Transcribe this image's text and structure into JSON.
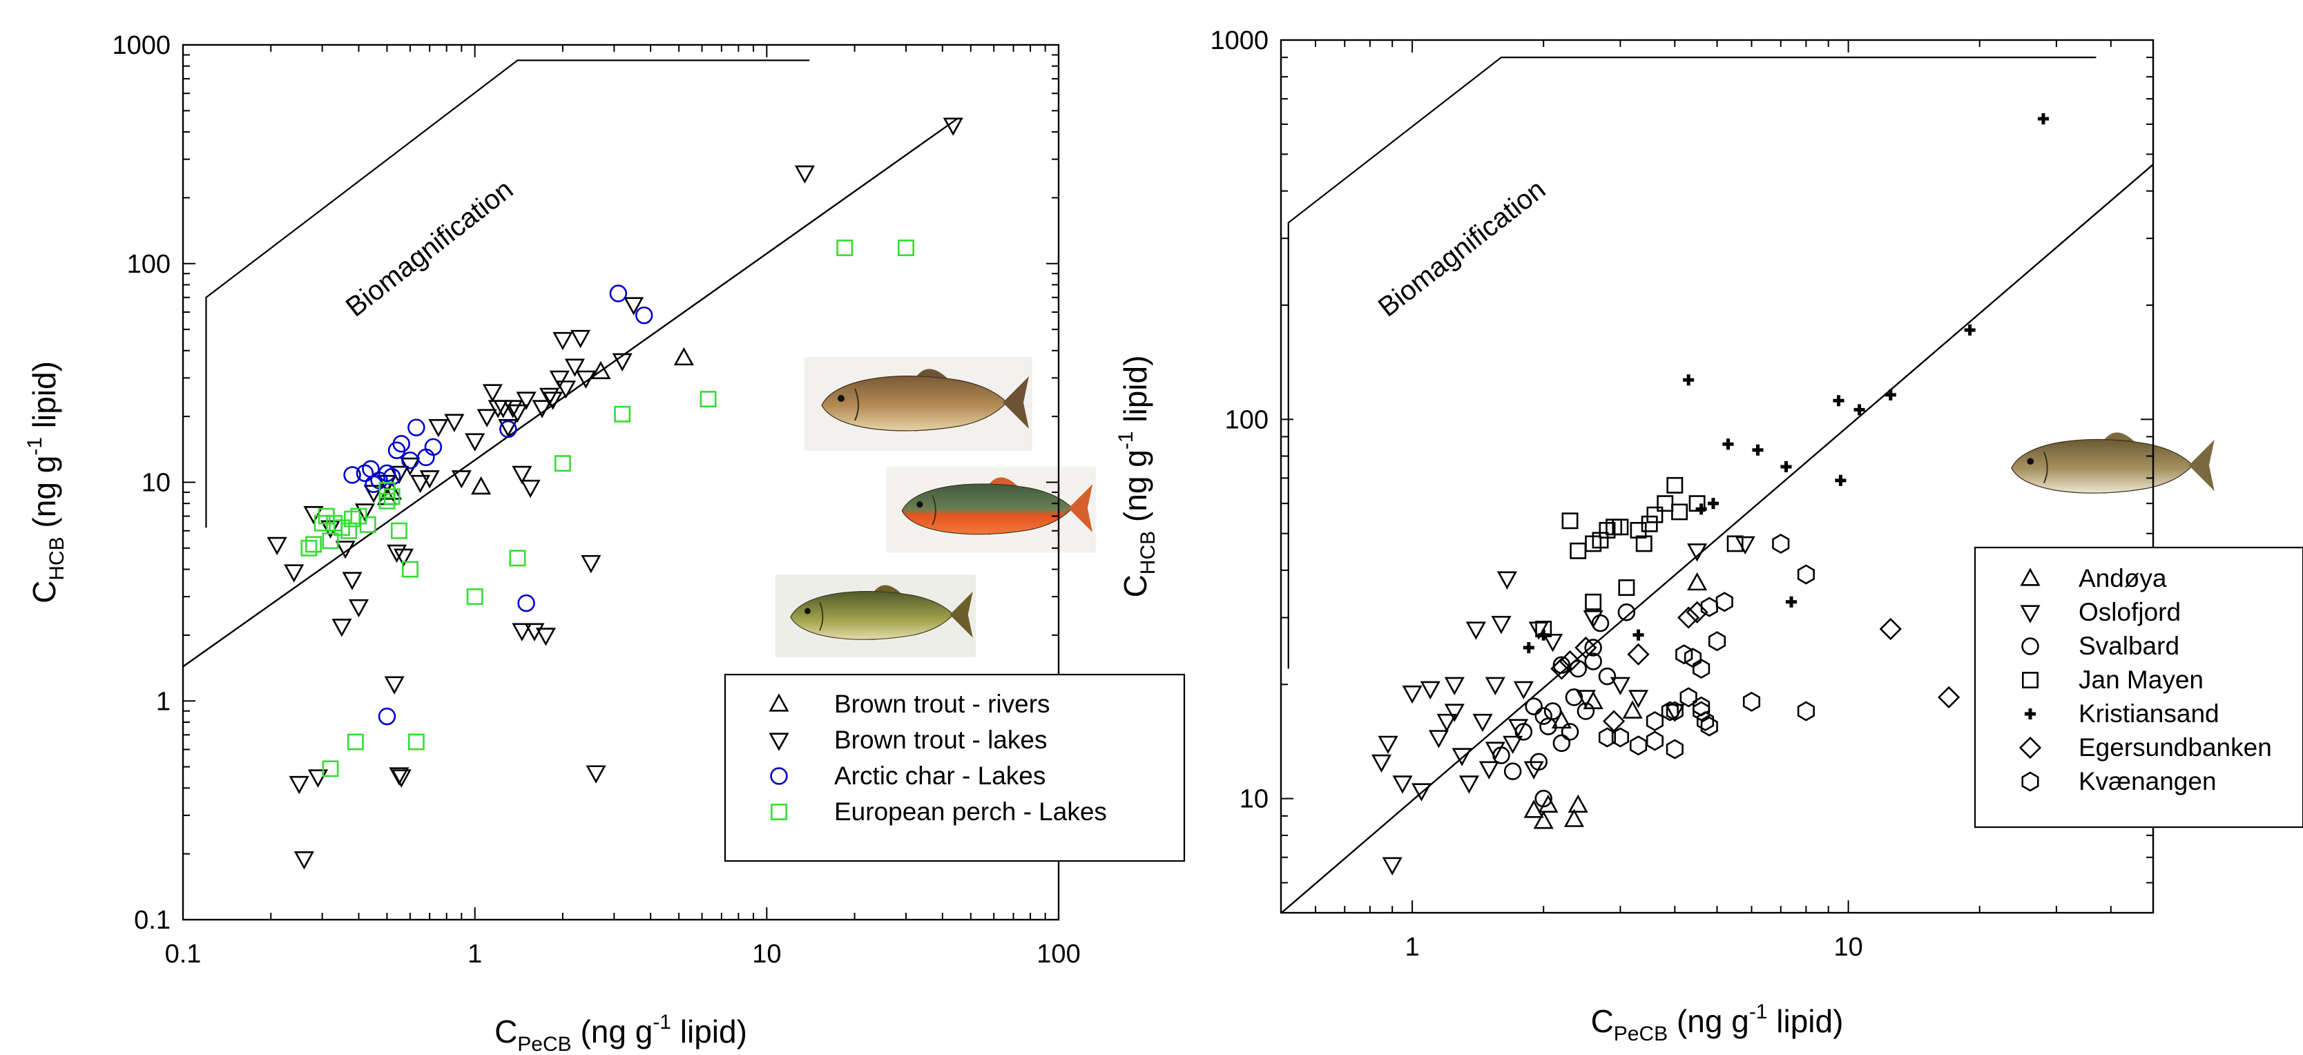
{
  "chart_data": [
    {
      "type": "scatter",
      "xscale": "log",
      "yscale": "log",
      "xlim": [
        0.1,
        100
      ],
      "ylim": [
        0.1,
        1000
      ],
      "x_ticks": [
        "0.1",
        "1",
        "10",
        "100"
      ],
      "y_ticks": [
        "0.1",
        "1",
        "10",
        "100",
        "1000"
      ],
      "xlabel": {
        "main": "C",
        "sub": "PeCB",
        "rest": " (ng g",
        "sup": "-1",
        "end": " lipid)"
      },
      "ylabel": {
        "main": "C",
        "sub": "HCB",
        "rest": " (ng g",
        "sup": "-1",
        "end": " lipid)"
      },
      "annotation": "Biomagnification",
      "legend_position": "bottom-right",
      "series": [
        {
          "name": "Brown trout - rivers",
          "marker": "triangle-up",
          "color": "#000000",
          "points": [
            [
              0.5,
              8.5
            ],
            [
              0.52,
              9
            ],
            [
              1.05,
              9.5
            ],
            [
              2.7,
              32
            ],
            [
              5.2,
              37
            ]
          ]
        },
        {
          "name": "Brown trout - lakes",
          "marker": "triangle-down",
          "color": "#000000",
          "points": [
            [
              0.21,
              5.2
            ],
            [
              0.24,
              3.9
            ],
            [
              0.25,
              0.42
            ],
            [
              0.26,
              0.19
            ],
            [
              0.28,
              7.2
            ],
            [
              0.29,
              0.45
            ],
            [
              0.32,
              6.2
            ],
            [
              0.35,
              2.2
            ],
            [
              0.36,
              5.0
            ],
            [
              0.38,
              3.6
            ],
            [
              0.4,
              2.7
            ],
            [
              0.42,
              7.4
            ],
            [
              0.45,
              9
            ],
            [
              0.5,
              10
            ],
            [
              0.53,
              1.2
            ],
            [
              0.54,
              4.8
            ],
            [
              0.55,
              0.46
            ],
            [
              0.55,
              11
            ],
            [
              0.56,
              0.45
            ],
            [
              0.57,
              4.6
            ],
            [
              0.6,
              12
            ],
            [
              0.65,
              10
            ],
            [
              0.7,
              10.5
            ],
            [
              0.75,
              18
            ],
            [
              0.85,
              19
            ],
            [
              0.9,
              10.5
            ],
            [
              1.0,
              15.5
            ],
            [
              1.1,
              20
            ],
            [
              1.15,
              26
            ],
            [
              1.2,
              22
            ],
            [
              1.25,
              22
            ],
            [
              1.3,
              18
            ],
            [
              1.35,
              22
            ],
            [
              1.4,
              21
            ],
            [
              1.45,
              11
            ],
            [
              1.45,
              2.1
            ],
            [
              1.5,
              24
            ],
            [
              1.55,
              9.5
            ],
            [
              1.6,
              2.1
            ],
            [
              1.7,
              22
            ],
            [
              1.75,
              2.0
            ],
            [
              1.8,
              25
            ],
            [
              1.85,
              24
            ],
            [
              1.95,
              30
            ],
            [
              2.0,
              45
            ],
            [
              2.05,
              27
            ],
            [
              2.2,
              34
            ],
            [
              2.3,
              46
            ],
            [
              2.4,
              30
            ],
            [
              2.5,
              4.3
            ],
            [
              2.6,
              0.47
            ],
            [
              3.2,
              36
            ],
            [
              3.5,
              65
            ],
            [
              13.5,
              260
            ],
            [
              43.5,
              430
            ]
          ]
        },
        {
          "name": "Arctic char - Lakes",
          "marker": "circle",
          "color": "#0000cc",
          "points": [
            [
              0.38,
              10.8
            ],
            [
              0.42,
              11
            ],
            [
              0.44,
              11.5
            ],
            [
              0.45,
              9.8
            ],
            [
              0.47,
              10.2
            ],
            [
              0.5,
              11
            ],
            [
              0.52,
              10.6
            ],
            [
              0.54,
              14
            ],
            [
              0.56,
              15
            ],
            [
              0.6,
              12.6
            ],
            [
              0.63,
              17.8
            ],
            [
              0.68,
              13
            ],
            [
              0.72,
              14.5
            ],
            [
              1.3,
              17.5
            ],
            [
              3.1,
              73
            ],
            [
              3.8,
              58
            ],
            [
              1.5,
              2.8
            ],
            [
              0.5,
              0.85
            ]
          ]
        },
        {
          "name": "European perch - Lakes",
          "marker": "square",
          "color": "#33dd33",
          "points": [
            [
              0.27,
              5.0
            ],
            [
              0.28,
              5.2
            ],
            [
              0.3,
              6.5
            ],
            [
              0.31,
              7.0
            ],
            [
              0.32,
              5.4
            ],
            [
              0.33,
              6.5
            ],
            [
              0.35,
              6.2
            ],
            [
              0.37,
              6.0
            ],
            [
              0.38,
              6.8
            ],
            [
              0.4,
              7.0
            ],
            [
              0.43,
              6.4
            ],
            [
              0.5,
              8.2
            ],
            [
              0.52,
              8.6
            ],
            [
              0.55,
              6.0
            ],
            [
              0.6,
              4.0
            ],
            [
              0.5,
              9.2
            ],
            [
              1.0,
              3.0
            ],
            [
              1.4,
              4.5
            ],
            [
              2.0,
              12.2
            ],
            [
              3.2,
              20.5
            ],
            [
              6.3,
              24
            ],
            [
              18.5,
              118
            ],
            [
              30,
              118
            ],
            [
              0.32,
              0.49
            ],
            [
              0.39,
              0.65
            ],
            [
              0.63,
              0.65
            ]
          ]
        }
      ]
    },
    {
      "type": "scatter",
      "xscale": "log",
      "yscale": "log",
      "xlim": [
        0.5,
        50
      ],
      "ylim": [
        5,
        1000
      ],
      "x_ticks": [
        "1",
        "10"
      ],
      "y_ticks": [
        "10",
        "100",
        "1000"
      ],
      "xlabel": {
        "main": "C",
        "sub": "PeCB",
        "rest": " (ng g",
        "sup": "-1",
        "end": " lipid)"
      },
      "ylabel": {
        "main": "C",
        "sub": "HCB",
        "rest": " (ng g",
        "sup": "-1",
        "end": " lipid)"
      },
      "annotation": "Biomagnification",
      "legend_position": "right",
      "series": [
        {
          "name": "Andøya",
          "marker": "triangle-up",
          "color": "#000000",
          "points": [
            [
              1.9,
              9.3
            ],
            [
              2.0,
              8.7
            ],
            [
              2.05,
              9.6
            ],
            [
              2.2,
              16
            ],
            [
              2.35,
              8.8
            ],
            [
              2.4,
              9.6
            ],
            [
              2.6,
              18
            ],
            [
              4.5,
              37
            ],
            [
              3.2,
              17
            ]
          ]
        },
        {
          "name": "Oslofjord",
          "marker": "triangle-down",
          "color": "#000000",
          "points": [
            [
              0.9,
              6.7
            ],
            [
              0.85,
              12.5
            ],
            [
              0.88,
              14
            ],
            [
              0.95,
              11
            ],
            [
              1.0,
              19
            ],
            [
              1.05,
              10.5
            ],
            [
              1.1,
              19.5
            ],
            [
              1.15,
              14.5
            ],
            [
              1.2,
              16
            ],
            [
              1.25,
              20
            ],
            [
              1.3,
              13
            ],
            [
              1.35,
              11
            ],
            [
              1.4,
              28
            ],
            [
              1.45,
              16
            ],
            [
              1.5,
              12
            ],
            [
              1.55,
              20
            ],
            [
              1.6,
              29
            ],
            [
              1.65,
              38
            ],
            [
              1.7,
              14
            ],
            [
              1.8,
              19.5
            ],
            [
              1.9,
              12
            ],
            [
              1.95,
              28
            ],
            [
              2.1,
              26
            ],
            [
              2.5,
              18.5
            ],
            [
              2.6,
              30
            ],
            [
              3.0,
              20
            ],
            [
              3.3,
              18.5
            ],
            [
              4.0,
              17
            ],
            [
              4.5,
              45
            ],
            [
              5.8,
              47
            ],
            [
              1.25,
              17
            ],
            [
              1.55,
              13.5
            ],
            [
              1.75,
              15.5
            ]
          ]
        },
        {
          "name": "Svalbard",
          "marker": "circle",
          "color": "#000000",
          "points": [
            [
              1.6,
              13
            ],
            [
              1.7,
              11.8
            ],
            [
              1.8,
              15
            ],
            [
              1.9,
              17.5
            ],
            [
              1.95,
              12.5
            ],
            [
              2.0,
              10
            ],
            [
              2.05,
              15.5
            ],
            [
              2.1,
              17
            ],
            [
              2.2,
              14
            ],
            [
              2.3,
              15
            ],
            [
              2.35,
              18.5
            ],
            [
              2.4,
              22
            ],
            [
              2.5,
              17
            ],
            [
              2.6,
              25
            ],
            [
              2.7,
              29
            ],
            [
              2.8,
              21
            ],
            [
              3.1,
              31
            ],
            [
              2.0,
              16.5
            ],
            [
              2.2,
              22.5
            ],
            [
              2.6,
              23
            ]
          ]
        },
        {
          "name": "Jan Mayen",
          "marker": "square",
          "color": "#000000",
          "points": [
            [
              2.0,
              28
            ],
            [
              2.3,
              54
            ],
            [
              2.4,
              45
            ],
            [
              2.6,
              33
            ],
            [
              2.6,
              47
            ],
            [
              2.7,
              48
            ],
            [
              2.8,
              51
            ],
            [
              2.9,
              52
            ],
            [
              3.0,
              52
            ],
            [
              3.1,
              36
            ],
            [
              3.3,
              51
            ],
            [
              3.4,
              47
            ],
            [
              3.5,
              53
            ],
            [
              3.6,
              56
            ],
            [
              3.8,
              60
            ],
            [
              4.0,
              67
            ],
            [
              4.1,
              57
            ],
            [
              4.5,
              60
            ],
            [
              5.5,
              47
            ]
          ]
        },
        {
          "name": "Kristiansand",
          "marker": "plus",
          "color": "#000000",
          "points": [
            [
              1.85,
              25
            ],
            [
              2.0,
              27
            ],
            [
              3.3,
              27
            ],
            [
              4.3,
              127
            ],
            [
              4.6,
              58
            ],
            [
              4.9,
              60
            ],
            [
              5.3,
              86
            ],
            [
              6.2,
              83
            ],
            [
              7.2,
              75
            ],
            [
              7.4,
              33
            ],
            [
              9.5,
              112
            ],
            [
              9.6,
              69
            ],
            [
              10.6,
              106
            ],
            [
              12.5,
              116
            ],
            [
              19,
              172
            ],
            [
              28,
              620
            ]
          ]
        },
        {
          "name": "Egersundbanken",
          "marker": "diamond",
          "color": "#000000",
          "points": [
            [
              2.2,
              22
            ],
            [
              2.3,
              23
            ],
            [
              2.5,
              25
            ],
            [
              2.9,
              16
            ],
            [
              3.3,
              24
            ],
            [
              4.3,
              30
            ],
            [
              4.5,
              31
            ],
            [
              12.5,
              28
            ],
            [
              17,
              18.5
            ]
          ]
        },
        {
          "name": "Kvænangen",
          "marker": "hexagon",
          "color": "#000000",
          "points": [
            [
              2.8,
              14.5
            ],
            [
              3.0,
              14.5
            ],
            [
              3.3,
              13.8
            ],
            [
              3.6,
              14.2
            ],
            [
              3.9,
              17
            ],
            [
              4.0,
              17
            ],
            [
              4.0,
              13.5
            ],
            [
              4.2,
              24
            ],
            [
              4.4,
              23.5
            ],
            [
              4.6,
              17
            ],
            [
              4.6,
              17.5
            ],
            [
              4.7,
              16
            ],
            [
              4.8,
              15.5
            ],
            [
              4.8,
              32
            ],
            [
              4.6,
              22
            ],
            [
              5.0,
              26
            ],
            [
              5.2,
              33
            ],
            [
              6.0,
              18
            ],
            [
              7.0,
              47
            ],
            [
              8.0,
              39
            ],
            [
              8.0,
              17
            ],
            [
              4.3,
              18.5
            ],
            [
              3.6,
              16
            ]
          ]
        }
      ]
    }
  ]
}
